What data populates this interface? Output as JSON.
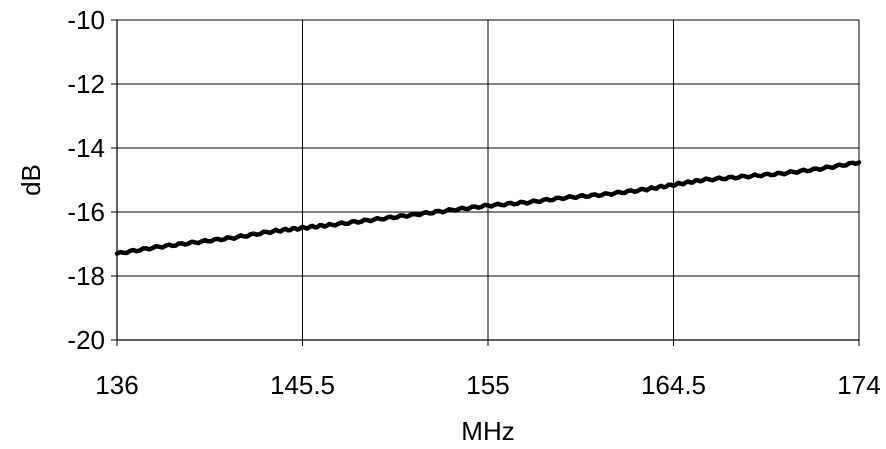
{
  "chart_data": {
    "type": "line",
    "title": "",
    "xlabel": "MHz",
    "ylabel": "dB",
    "xlim": [
      136,
      174
    ],
    "ylim": [
      -20,
      -10
    ],
    "x_ticks": [
      136,
      145.5,
      155,
      164.5,
      174
    ],
    "x_tick_labels": [
      "136",
      "145.5",
      "155",
      "164.5",
      "174"
    ],
    "y_ticks": [
      -10,
      -12,
      -14,
      -16,
      -18,
      -20
    ],
    "y_tick_labels": [
      "-10",
      "-12",
      "-14",
      "-16",
      "-18",
      "-20"
    ],
    "grid": true,
    "legend": "none",
    "series": [
      {
        "color": "#000000",
        "x": [
          136,
          138,
          140,
          142,
          144,
          145.5,
          147,
          149,
          151,
          153,
          155,
          157,
          159,
          161,
          163,
          164.5,
          166,
          168,
          170,
          172,
          174
        ],
        "y": [
          -17.3,
          -17.1,
          -16.95,
          -16.8,
          -16.6,
          -16.5,
          -16.4,
          -16.25,
          -16.1,
          -15.95,
          -15.8,
          -15.7,
          -15.55,
          -15.45,
          -15.3,
          -15.15,
          -15.0,
          -14.9,
          -14.8,
          -14.65,
          -14.45
        ]
      }
    ]
  }
}
